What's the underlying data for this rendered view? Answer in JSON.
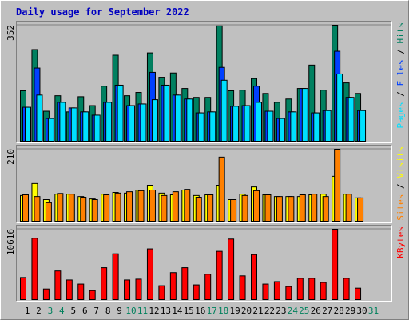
{
  "chart_data": [
    {
      "type": "bar",
      "title": "Daily usage for September 2022",
      "title_color": "#0000C0",
      "ylim": [
        0,
        352
      ],
      "yticks": [
        352
      ],
      "legend_separator": " / ",
      "series": [
        {
          "name": "Hits",
          "color": "#008060",
          "values": [
            153,
            278,
            91,
            138,
            89,
            135,
            108,
            167,
            261,
            138,
            148,
            268,
            194,
            207,
            160,
            133,
            133,
            350,
            153,
            155,
            190,
            145,
            118,
            128,
            160,
            231,
            155,
            352,
            177,
            145,
            null
          ]
        },
        {
          "name": "Files",
          "color": "#0040FF",
          "values": [
            103,
            222,
            69,
            118,
            101,
            89,
            79,
            118,
            170,
            108,
            113,
            209,
            170,
            140,
            128,
            86,
            89,
            224,
            106,
            108,
            167,
            91,
            69,
            89,
            160,
            86,
            93,
            273,
            133,
            93,
            null
          ]
        },
        {
          "name": "Pages",
          "color": "#00E0FF",
          "values": [
            103,
            140,
            69,
            118,
            101,
            89,
            79,
            118,
            170,
            108,
            113,
            126,
            170,
            140,
            128,
            86,
            89,
            185,
            106,
            108,
            118,
            91,
            69,
            89,
            160,
            86,
            93,
            204,
            133,
            93,
            null
          ]
        }
      ]
    },
    {
      "type": "bar",
      "ylim": [
        0,
        210
      ],
      "yticks": [
        210
      ],
      "legend_separator": " / ",
      "series": [
        {
          "name": "Visits",
          "color": "#FFFF00",
          "values": [
            75,
            110,
            63,
            79,
            79,
            72,
            65,
            79,
            84,
            82,
            91,
            105,
            82,
            77,
            91,
            75,
            77,
            105,
            63,
            79,
            100,
            77,
            72,
            72,
            72,
            77,
            79,
            131,
            79,
            68,
            null
          ]
        },
        {
          "name": "Sites",
          "color": "#FF8000",
          "values": [
            77,
            72,
            54,
            81,
            79,
            70,
            63,
            77,
            82,
            86,
            89,
            91,
            75,
            86,
            93,
            70,
            77,
            187,
            63,
            75,
            89,
            77,
            72,
            72,
            77,
            79,
            72,
            210,
            79,
            68,
            null
          ]
        }
      ]
    },
    {
      "type": "bar",
      "ylim": [
        0,
        10616
      ],
      "yticks": [
        10616
      ],
      "legend_separator": " / ",
      "categories": [
        "1",
        "2",
        "3",
        "4",
        "5",
        "6",
        "7",
        "8",
        "9",
        "10",
        "11",
        "12",
        "13",
        "14",
        "15",
        "16",
        "17",
        "18",
        "19",
        "20",
        "21",
        "22",
        "23",
        "24",
        "25",
        "26",
        "27",
        "28",
        "29",
        "30",
        "31"
      ],
      "label_colors": [
        "#000000",
        "#000000",
        "#00805C",
        "#00805C",
        "#000000",
        "#000000",
        "#000000",
        "#000000",
        "#000000",
        "#00805C",
        "#00805C",
        "#000000",
        "#000000",
        "#000000",
        "#000000",
        "#000000",
        "#00805C",
        "#00805C",
        "#000000",
        "#000000",
        "#000000",
        "#000000",
        "#000000",
        "#00805C",
        "#00805C",
        "#000000",
        "#000000",
        "#000000",
        "#000000",
        "#000000",
        "#00805C"
      ],
      "series": [
        {
          "name": "KBytes",
          "color": "#FF0000",
          "values": [
            3333,
            9258,
            1605,
            4321,
            2963,
            2345,
            1358,
            4814,
            6913,
            2963,
            3086,
            7653,
            2099,
            4074,
            4814,
            2222,
            3827,
            7283,
            9135,
            3580,
            6790,
            2345,
            2716,
            1975,
            3210,
            3210,
            2592,
            10616,
            3210,
            1728,
            null
          ]
        }
      ]
    }
  ]
}
